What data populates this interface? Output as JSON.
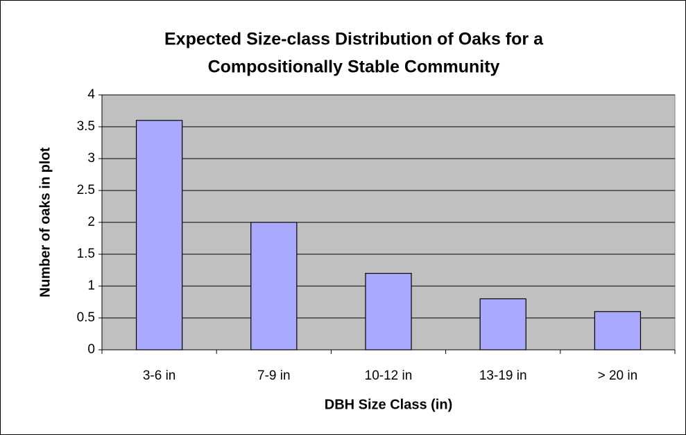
{
  "chart_data": {
    "type": "bar",
    "title": [
      "Expected Size-class Distribution of Oaks for a",
      "Compositionally Stable Community"
    ],
    "x_label": "DBH Size Class (in)",
    "y_label": "Number of oaks in plot",
    "categories": [
      "3-6 in",
      "7-9 in",
      "10-12 in",
      "13-19 in",
      "> 20 in"
    ],
    "values": [
      3.6,
      2,
      1.2,
      0.8,
      0.6
    ],
    "color": "#a9a9ff",
    "ylim": [
      0,
      4
    ],
    "yticks": [
      0,
      0.5,
      1,
      1.5,
      2,
      2.5,
      3,
      3.5,
      4
    ],
    "grid": true
  }
}
